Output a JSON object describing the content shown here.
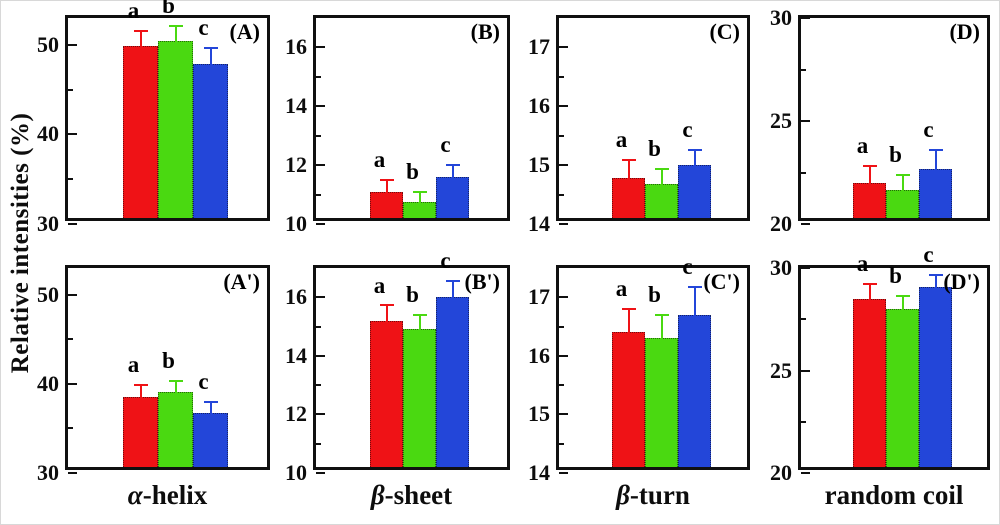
{
  "figure": {
    "ylabel": "Relative intensities (%)"
  },
  "chart_data": {
    "type": "bar",
    "title": "",
    "ylabel": "Relative intensities (%)",
    "legend": "none",
    "grid": false,
    "series_letters": [
      "a",
      "b",
      "c"
    ],
    "series_colors": [
      "#ef1216",
      "#4ad911",
      "#2346d9"
    ],
    "categories": [
      {
        "greek": "α",
        "rest": "-helix"
      },
      {
        "greek": "β",
        "rest": "-sheet"
      },
      {
        "greek": "β",
        "rest": "-turn"
      },
      {
        "greek": "",
        "rest": "random coil"
      }
    ],
    "panels": [
      {
        "id": "A",
        "label": "(A)",
        "category_index": 0,
        "ylim": [
          30,
          53
        ],
        "yticks_major": [
          30,
          40,
          50
        ],
        "yticks_minor": [
          35,
          45
        ],
        "values": [
          49.2,
          49.8,
          47.2
        ],
        "errors_plus": [
          2.3,
          2.3,
          2.4
        ]
      },
      {
        "id": "B",
        "label": "(B)",
        "category_index": 1,
        "ylim": [
          10,
          17
        ],
        "yticks_major": [
          10,
          12,
          14,
          16
        ],
        "yticks_minor": [
          11,
          13,
          15
        ],
        "values": [
          10.9,
          10.55,
          11.4
        ],
        "errors_plus": [
          0.6,
          0.55,
          0.6
        ]
      },
      {
        "id": "C",
        "label": "(C)",
        "category_index": 2,
        "ylim": [
          14,
          17.5
        ],
        "yticks_major": [
          14,
          15,
          16,
          17
        ],
        "yticks_minor": [
          14.5,
          15.5,
          16.5
        ],
        "values": [
          14.68,
          14.58,
          14.9
        ],
        "errors_plus": [
          0.4,
          0.36,
          0.35
        ]
      },
      {
        "id": "D",
        "label": "(D)",
        "category_index": 3,
        "ylim": [
          20,
          30
        ],
        "yticks_major": [
          20,
          25,
          30
        ],
        "yticks_minor": [
          22.5,
          27.5
        ],
        "values": [
          21.7,
          21.35,
          22.4
        ],
        "errors_plus": [
          1.1,
          1.05,
          1.2
        ]
      },
      {
        "id": "A2",
        "label": "(A')",
        "category_index": 0,
        "ylim": [
          30,
          53
        ],
        "yticks_major": [
          30,
          40,
          50
        ],
        "yticks_minor": [
          35,
          45
        ],
        "values": [
          37.9,
          38.4,
          36.1
        ],
        "errors_plus": [
          2.0,
          1.9,
          1.9
        ]
      },
      {
        "id": "B2",
        "label": "(B')",
        "category_index": 1,
        "ylim": [
          10,
          17
        ],
        "yticks_major": [
          10,
          12,
          14,
          16
        ],
        "yticks_minor": [
          11,
          13,
          15
        ],
        "values": [
          15.0,
          14.7,
          15.8
        ],
        "errors_plus": [
          0.72,
          0.7,
          0.75
        ]
      },
      {
        "id": "C2",
        "label": "(C')",
        "category_index": 2,
        "ylim": [
          14,
          17.5
        ],
        "yticks_major": [
          14,
          15,
          16,
          17
        ],
        "yticks_minor": [
          14.5,
          15.5,
          16.5
        ],
        "values": [
          16.3,
          16.2,
          16.6
        ],
        "errors_plus": [
          0.5,
          0.5,
          0.58
        ]
      },
      {
        "id": "D2",
        "label": "(D')",
        "category_index": 3,
        "ylim": [
          20,
          30
        ],
        "yticks_major": [
          20,
          25,
          30
        ],
        "yticks_minor": [
          22.5,
          27.5
        ],
        "values": [
          28.2,
          27.7,
          28.8
        ],
        "errors_plus": [
          1.0,
          0.95,
          0.85
        ]
      }
    ]
  }
}
